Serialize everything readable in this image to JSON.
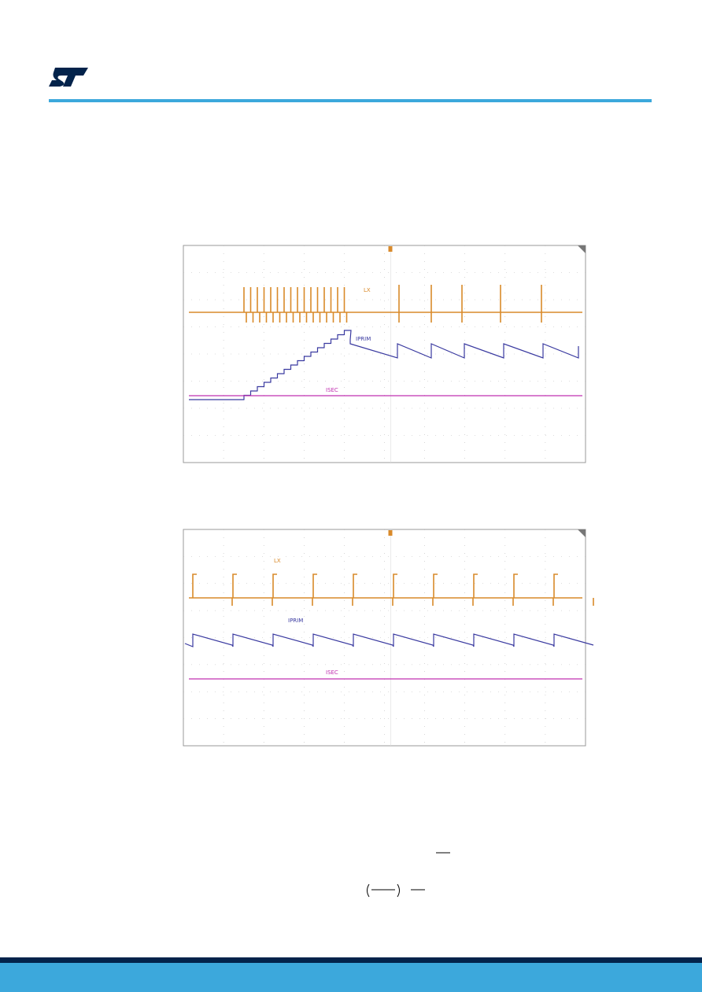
{
  "figures": [
    {
      "traces": {
        "lx": "LX",
        "iprim": "IPRIM",
        "isec": "ISEC"
      }
    },
    {
      "traces": {
        "lx": "LX",
        "iprim": "IPRIM",
        "isec": "ISEC"
      }
    }
  ]
}
